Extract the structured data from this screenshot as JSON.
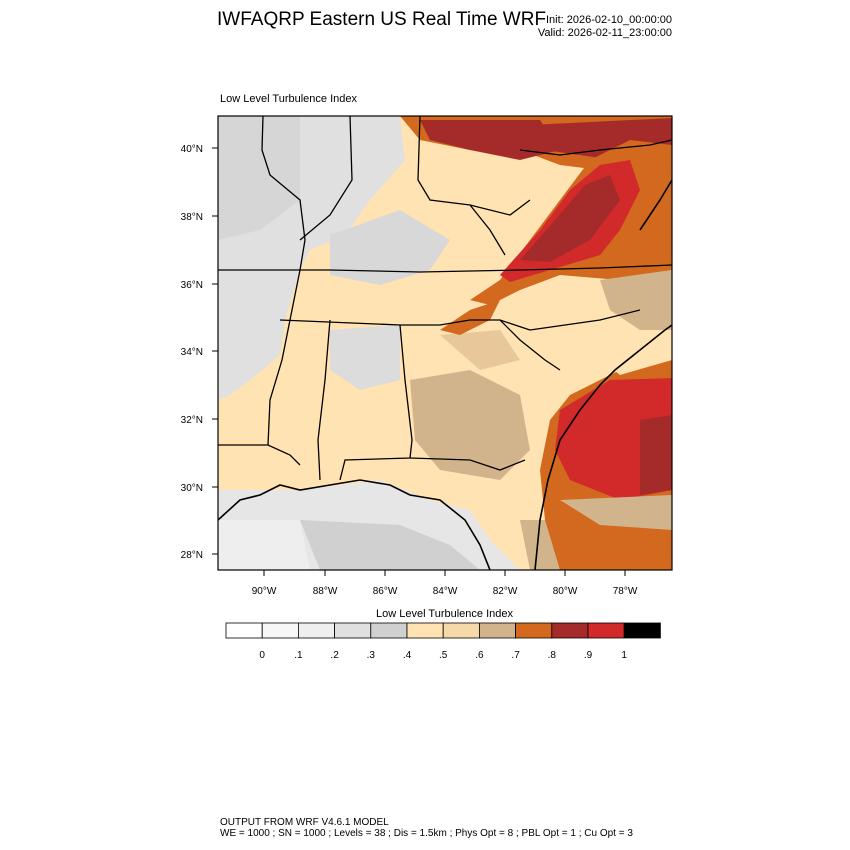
{
  "header": {
    "title": "IWFAQRP Eastern US Real Time WRF",
    "init": "Init: 2026-02-10_00:00:00",
    "valid": "Valid: 2026-02-11_23:00:00"
  },
  "panel": {
    "title": "Low Level Turbulence Index",
    "lat_labels": [
      "40°N",
      "38°N",
      "36°N",
      "34°N",
      "32°N",
      "30°N",
      "28°N"
    ],
    "lon_labels": [
      "90°W",
      "88°W",
      "86°W",
      "84°W",
      "82°W",
      "80°W",
      "78°W"
    ]
  },
  "colorbar": {
    "title": "Low Level Turbulence Index",
    "tick_labels": [
      "0",
      ".1",
      ".2",
      ".3",
      ".4",
      ".5",
      ".6",
      ".7",
      ".8",
      ".9",
      "1"
    ],
    "colors": [
      "#ffffff",
      "#f7f7f7",
      "#efefef",
      "#e0e0e0",
      "#d0d0d0",
      "#ffe3b3",
      "#f5d9a8",
      "#d2b48c",
      "#d2691e",
      "#a52a2a",
      "#d22a2a",
      "#000000"
    ]
  },
  "footer": {
    "line1": "OUTPUT FROM WRF V4.6.1 MODEL",
    "line2": "WE = 1000 ; SN = 1000 ; Levels = 38 ; Dis = 1.5km ; Phys Opt = 8 ; PBL Opt = 1 ; Cu Opt = 3"
  }
}
